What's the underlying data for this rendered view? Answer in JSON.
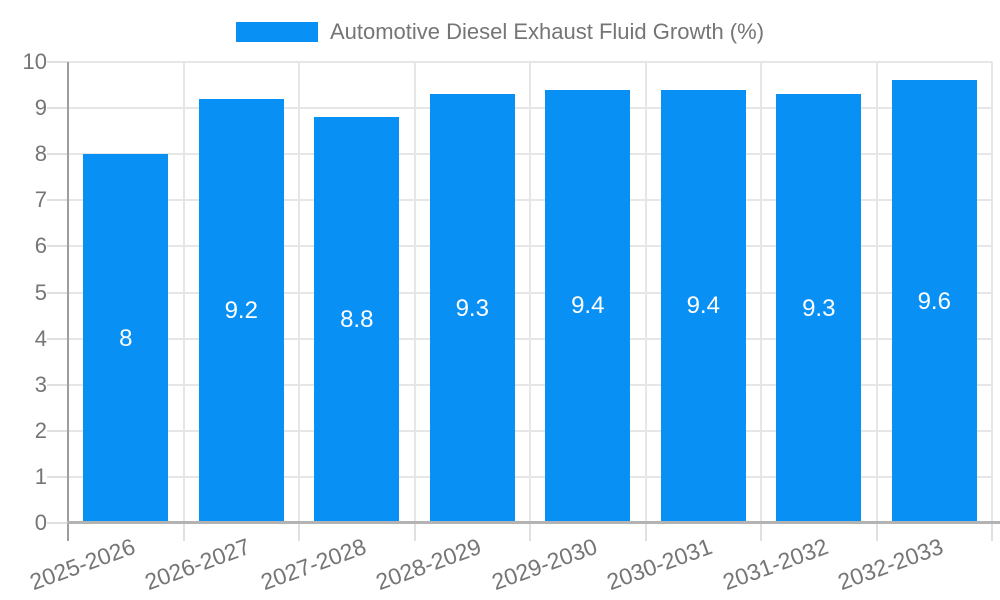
{
  "chart_data": {
    "type": "bar",
    "title": "Automotive Diesel Exhaust Fluid Growth (%)",
    "legend_position": "top",
    "categories": [
      "2025-2026",
      "2026-2027",
      "2027-2028",
      "2028-2029",
      "2029-2030",
      "2030-2031",
      "2031-2032",
      "2032-2033"
    ],
    "values": [
      8,
      9.2,
      8.8,
      9.3,
      9.4,
      9.4,
      9.3,
      9.6
    ],
    "value_label_texts": [
      "8",
      "9.2",
      "8.8",
      "9.3",
      "9.4",
      "9.4",
      "9.3",
      "9.6"
    ],
    "xlabel": "",
    "ylabel": "",
    "ylim": [
      0,
      10
    ],
    "yticks": [
      0,
      1,
      2,
      3,
      4,
      5,
      6,
      7,
      8,
      9,
      10
    ],
    "grid": true,
    "value_label_position": "inside-center",
    "x_label_rotation_deg": -20,
    "colors": {
      "bar": "#0990f5",
      "value_label": "#ffffff",
      "axis_text": "#757575",
      "gridline": "#e6e6e6",
      "tick": "#e0e0e0",
      "axis_line": "#9e9e9e",
      "baseline": "#b3b3b3",
      "background": "#ffffff"
    }
  }
}
